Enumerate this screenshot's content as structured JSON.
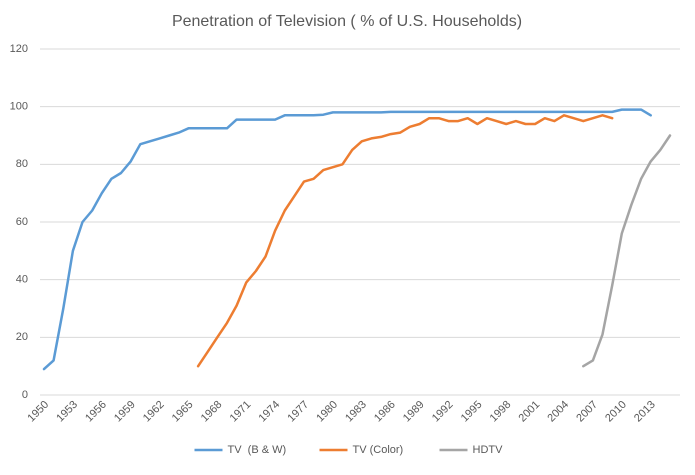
{
  "chart_data": {
    "type": "line",
    "title": "Penetration of Television ( % of U.S. Households)",
    "categories": [
      "1950",
      null,
      null,
      "1953",
      null,
      null,
      "1956",
      null,
      null,
      "1959",
      null,
      null,
      "1962",
      null,
      null,
      "1965",
      null,
      null,
      "1968",
      null,
      null,
      "1971",
      null,
      null,
      "1974",
      null,
      null,
      "1977",
      null,
      null,
      "1980",
      null,
      null,
      "1983",
      null,
      null,
      "1986",
      null,
      null,
      "1989",
      null,
      null,
      "1992",
      null,
      null,
      "1995",
      null,
      null,
      "1998",
      null,
      null,
      "2001",
      null,
      null,
      "2004",
      null,
      null,
      "2007",
      null,
      null,
      "2010",
      null,
      null,
      "2013",
      null,
      null
    ],
    "series": [
      {
        "name": "TV  (B & W)",
        "color": "#5b9bd5",
        "values": [
          9,
          12,
          30,
          50,
          60,
          64,
          70,
          75,
          77,
          81,
          87,
          88,
          89,
          90,
          91,
          92.5,
          92.5,
          92.5,
          92.5,
          92.5,
          95.5,
          95.5,
          95.5,
          95.5,
          95.5,
          97,
          97,
          97,
          97,
          97.2,
          98,
          98,
          98,
          98,
          98,
          98,
          98.2,
          98.2,
          98.2,
          98.2,
          98.2,
          98.2,
          98.2,
          98.2,
          98.2,
          98.2,
          98.2,
          98.2,
          98.2,
          98.2,
          98.2,
          98.2,
          98.2,
          98.2,
          98.2,
          98.2,
          98.2,
          98.2,
          98.2,
          98.2,
          99,
          99,
          99,
          97,
          null,
          null
        ]
      },
      {
        "name": "TV (Color)",
        "color": "#ed7d31",
        "values": [
          null,
          null,
          null,
          null,
          null,
          null,
          null,
          null,
          null,
          null,
          null,
          null,
          null,
          null,
          null,
          null,
          10,
          15,
          20,
          25,
          31,
          39,
          43,
          48,
          57,
          64,
          69,
          74,
          75,
          78,
          79,
          80,
          85,
          88,
          89,
          89.5,
          90.5,
          91,
          93,
          94,
          96,
          96,
          95,
          95,
          96,
          94,
          96,
          95,
          94,
          95,
          94,
          94,
          96,
          95,
          97,
          96,
          95,
          96,
          97,
          96,
          null,
          null,
          null,
          null,
          null,
          null
        ]
      },
      {
        "name": "HDTV",
        "color": "#a5a5a5",
        "values": [
          null,
          null,
          null,
          null,
          null,
          null,
          null,
          null,
          null,
          null,
          null,
          null,
          null,
          null,
          null,
          null,
          null,
          null,
          null,
          null,
          null,
          null,
          null,
          null,
          null,
          null,
          null,
          null,
          null,
          null,
          null,
          null,
          null,
          null,
          null,
          null,
          null,
          null,
          null,
          null,
          null,
          null,
          null,
          null,
          null,
          null,
          null,
          null,
          null,
          null,
          null,
          null,
          null,
          null,
          null,
          null,
          10,
          12,
          21,
          38,
          56,
          66,
          75,
          81,
          85,
          90
        ]
      }
    ],
    "ylim": [
      0,
      120
    ],
    "yticks": [
      0,
      20,
      40,
      60,
      80,
      100,
      120
    ],
    "grid": true,
    "legend": "bottom"
  }
}
